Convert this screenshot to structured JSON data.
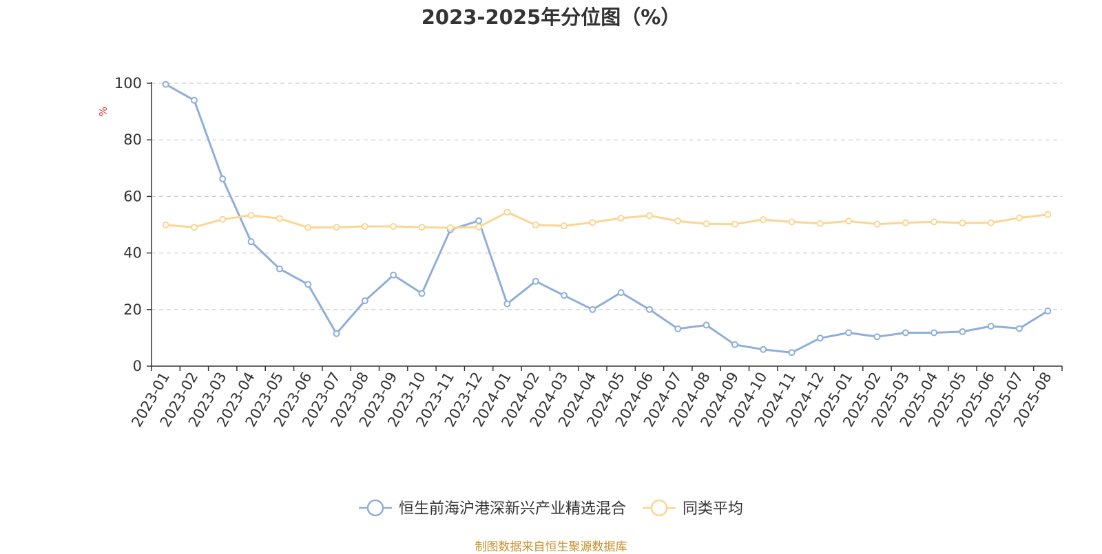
{
  "chart_data": {
    "type": "line",
    "title": "2023-2025年分位图（%）",
    "ylabel": "%",
    "ylim": [
      0,
      100
    ],
    "yticks": [
      "0",
      "20",
      "40",
      "60",
      "80",
      "100"
    ],
    "grid": true,
    "legend_position": "bottom",
    "categories": [
      "2023-01",
      "2023-02",
      "2023-03",
      "2023-04",
      "2023-05",
      "2023-06",
      "2023-07",
      "2023-08",
      "2023-09",
      "2023-10",
      "2023-11",
      "2023-12",
      "2024-01",
      "2024-02",
      "2024-03",
      "2024-04",
      "2024-05",
      "2024-06",
      "2024-07",
      "2024-08",
      "2024-09",
      "2024-10",
      "2024-11",
      "2024-12",
      "2025-01",
      "2025-02",
      "2025-03",
      "2025-04",
      "2025-05",
      "2025-06",
      "2025-07",
      "2025-08"
    ],
    "series": [
      {
        "name": "恒生前海沪港深新兴产业精选混合",
        "color": "#8eaedb",
        "values": [
          99.6,
          94.0,
          66.2,
          44.0,
          34.4,
          28.9,
          11.5,
          23.1,
          32.2,
          25.7,
          48.2,
          51.4,
          22.0,
          30.0,
          25.0,
          20.0,
          26.0,
          20.0,
          13.2,
          14.5,
          7.6,
          5.9,
          4.8,
          9.9,
          11.8,
          10.4,
          11.8,
          11.8,
          12.2,
          14.1,
          13.3,
          19.5
        ]
      },
      {
        "name": "同类平均",
        "color": "#fbd592",
        "values": [
          49.9,
          49.1,
          51.9,
          53.3,
          52.2,
          49.0,
          49.1,
          49.4,
          49.4,
          49.1,
          48.9,
          49.2,
          54.4,
          49.9,
          49.6,
          50.8,
          52.3,
          53.2,
          51.3,
          50.3,
          50.2,
          51.8,
          51.0,
          50.4,
          51.3,
          50.2,
          50.7,
          51.0,
          50.6,
          50.7,
          52.4,
          53.6
        ]
      }
    ]
  },
  "source_text": "制图数据来自恒生聚源数据库"
}
